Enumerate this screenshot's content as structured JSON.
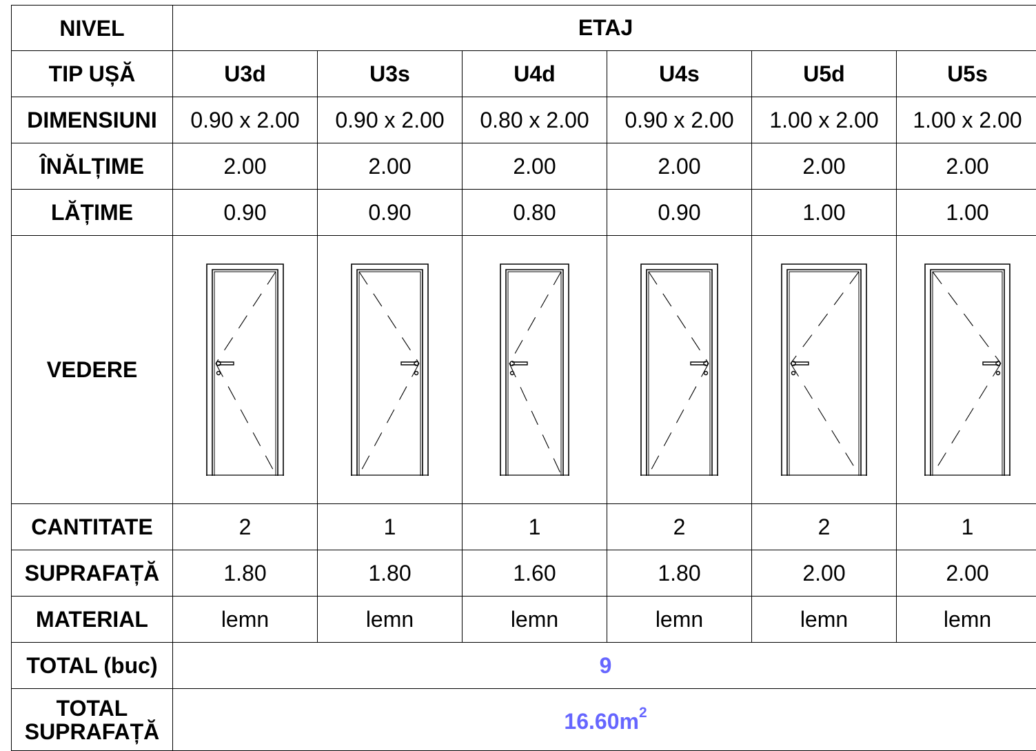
{
  "labels": {
    "nivel": "NIVEL",
    "tip_usa": "TIP UȘĂ",
    "dimensiuni": "DIMENSIUNI",
    "inaltime": "ÎNĂLȚIME",
    "latime": "LĂȚIME",
    "vedere": "VEDERE",
    "cantitate": "CANTITATE",
    "suprafata": "SUPRAFAȚĂ",
    "material": "MATERIAL",
    "total_buc": "TOTAL (buc)",
    "total_suprafata_line1": "TOTAL",
    "total_suprafata_line2": "SUPRAFAȚĂ"
  },
  "nivel_value": "ETAJ",
  "doors": [
    {
      "type": "U3d",
      "dimensions": "0.90 x 2.00",
      "height": "2.00",
      "width": "0.90",
      "quantity": "2",
      "area": "1.80",
      "material": "lemn",
      "hinge": "right"
    },
    {
      "type": "U3s",
      "dimensions": "0.90 x 2.00",
      "height": "2.00",
      "width": "0.90",
      "quantity": "1",
      "area": "1.80",
      "material": "lemn",
      "hinge": "left"
    },
    {
      "type": "U4d",
      "dimensions": "0.80 x 2.00",
      "height": "2.00",
      "width": "0.80",
      "quantity": "1",
      "area": "1.60",
      "material": "lemn",
      "hinge": "right"
    },
    {
      "type": "U4s",
      "dimensions": "0.90 x 2.00",
      "height": "2.00",
      "width": "0.90",
      "quantity": "2",
      "area": "1.80",
      "material": "lemn",
      "hinge": "left"
    },
    {
      "type": "U5d",
      "dimensions": "1.00 x 2.00",
      "height": "2.00",
      "width": "1.00",
      "quantity": "2",
      "area": "2.00",
      "material": "lemn",
      "hinge": "right"
    },
    {
      "type": "U5s",
      "dimensions": "1.00 x 2.00",
      "height": "2.00",
      "width": "1.00",
      "quantity": "1",
      "area": "2.00",
      "material": "lemn",
      "hinge": "left"
    }
  ],
  "totals": {
    "pieces": "9",
    "area_value": "16.60m",
    "area_exponent": "2"
  },
  "colors": {
    "total_text": "#6666ff",
    "grid": "#000000"
  },
  "icons": {
    "door_elevation": "door-elevation-icon"
  }
}
